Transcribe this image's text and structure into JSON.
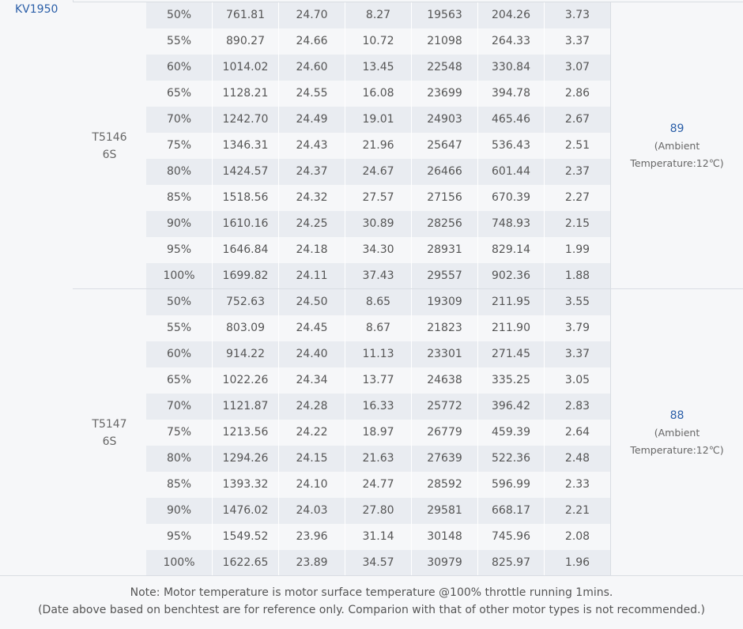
{
  "kv_label": "KV1950",
  "groups": [
    {
      "prop_line1": "T5146",
      "prop_line2": "6S",
      "temp_value": "89",
      "temp_line2": "(Ambient",
      "temp_line3": "Temperature:12℃)",
      "rows": [
        [
          "50%",
          "761.81",
          "24.70",
          "8.27",
          "19563",
          "204.26",
          "3.73"
        ],
        [
          "55%",
          "890.27",
          "24.66",
          "10.72",
          "21098",
          "264.33",
          "3.37"
        ],
        [
          "60%",
          "1014.02",
          "24.60",
          "13.45",
          "22548",
          "330.84",
          "3.07"
        ],
        [
          "65%",
          "1128.21",
          "24.55",
          "16.08",
          "23699",
          "394.78",
          "2.86"
        ],
        [
          "70%",
          "1242.70",
          "24.49",
          "19.01",
          "24903",
          "465.46",
          "2.67"
        ],
        [
          "75%",
          "1346.31",
          "24.43",
          "21.96",
          "25647",
          "536.43",
          "2.51"
        ],
        [
          "80%",
          "1424.57",
          "24.37",
          "24.67",
          "26466",
          "601.44",
          "2.37"
        ],
        [
          "85%",
          "1518.56",
          "24.32",
          "27.57",
          "27156",
          "670.39",
          "2.27"
        ],
        [
          "90%",
          "1610.16",
          "24.25",
          "30.89",
          "28256",
          "748.93",
          "2.15"
        ],
        [
          "95%",
          "1646.84",
          "24.18",
          "34.30",
          "28931",
          "829.14",
          "1.99"
        ],
        [
          "100%",
          "1699.82",
          "24.11",
          "37.43",
          "29557",
          "902.36",
          "1.88"
        ]
      ]
    },
    {
      "prop_line1": "T5147",
      "prop_line2": "6S",
      "temp_value": "88",
      "temp_line2": "(Ambient",
      "temp_line3": "Temperature:12℃)",
      "rows": [
        [
          "50%",
          "752.63",
          "24.50",
          "8.65",
          "19309",
          "211.95",
          "3.55"
        ],
        [
          "55%",
          "803.09",
          "24.45",
          "8.67",
          "21823",
          "211.90",
          "3.79"
        ],
        [
          "60%",
          "914.22",
          "24.40",
          "11.13",
          "23301",
          "271.45",
          "3.37"
        ],
        [
          "65%",
          "1022.26",
          "24.34",
          "13.77",
          "24638",
          "335.25",
          "3.05"
        ],
        [
          "70%",
          "1121.87",
          "24.28",
          "16.33",
          "25772",
          "396.42",
          "2.83"
        ],
        [
          "75%",
          "1213.56",
          "24.22",
          "18.97",
          "26779",
          "459.39",
          "2.64"
        ],
        [
          "80%",
          "1294.26",
          "24.15",
          "21.63",
          "27639",
          "522.36",
          "2.48"
        ],
        [
          "85%",
          "1393.32",
          "24.10",
          "24.77",
          "28592",
          "596.99",
          "2.33"
        ],
        [
          "90%",
          "1476.02",
          "24.03",
          "27.80",
          "29581",
          "668.17",
          "2.21"
        ],
        [
          "95%",
          "1549.52",
          "23.96",
          "31.14",
          "30148",
          "745.96",
          "2.08"
        ],
        [
          "100%",
          "1622.65",
          "23.89",
          "34.57",
          "30979",
          "825.97",
          "1.96"
        ]
      ]
    }
  ],
  "note": {
    "line1": "Note: Motor temperature is motor surface temperature @100% throttle running 1mins.",
    "line2": "(Date above based on benchtest are for reference only. Comparion with that of other motor types is not recommended.)"
  },
  "colors": {
    "accent": "#2a5ea8",
    "row_stripe": "#e9ecf1",
    "background": "#f6f7f9",
    "border": "#d9dde3"
  }
}
